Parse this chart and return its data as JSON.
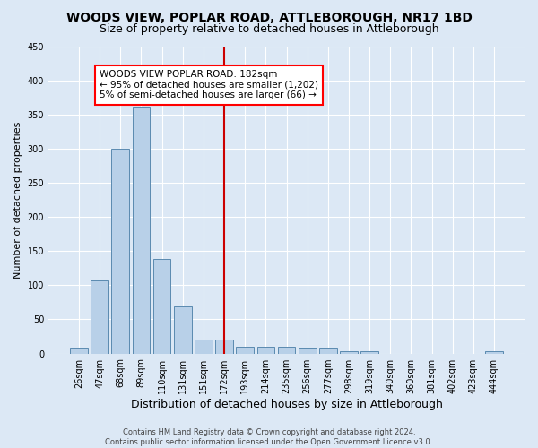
{
  "title": "WOODS VIEW, POPLAR ROAD, ATTLEBOROUGH, NR17 1BD",
  "subtitle": "Size of property relative to detached houses in Attleborough",
  "xlabel": "Distribution of detached houses by size in Attleborough",
  "ylabel": "Number of detached properties",
  "categories": [
    "26sqm",
    "47sqm",
    "68sqm",
    "89sqm",
    "110sqm",
    "131sqm",
    "151sqm",
    "172sqm",
    "193sqm",
    "214sqm",
    "235sqm",
    "256sqm",
    "277sqm",
    "298sqm",
    "319sqm",
    "340sqm",
    "360sqm",
    "381sqm",
    "402sqm",
    "423sqm",
    "444sqm"
  ],
  "values": [
    8,
    107,
    300,
    362,
    139,
    69,
    20,
    20,
    10,
    10,
    10,
    8,
    8,
    3,
    3,
    0,
    0,
    0,
    0,
    0,
    3
  ],
  "bar_color": "#b8d0e8",
  "bar_edge_color": "#5a8ab0",
  "vline_index": 7,
  "vline_color": "#cc0000",
  "annotation_box_text": "WOODS VIEW POPLAR ROAD: 182sqm\n← 95% of detached houses are smaller (1,202)\n5% of semi-detached houses are larger (66) →",
  "ylim": [
    0,
    450
  ],
  "yticks": [
    0,
    50,
    100,
    150,
    200,
    250,
    300,
    350,
    400,
    450
  ],
  "footer_text": "Contains HM Land Registry data © Crown copyright and database right 2024.\nContains public sector information licensed under the Open Government Licence v3.0.",
  "background_color": "#dce8f5",
  "plot_background_color": "#dce8f5",
  "grid_color": "#ffffff",
  "title_fontsize": 10,
  "subtitle_fontsize": 9,
  "xlabel_fontsize": 9,
  "ylabel_fontsize": 8,
  "tick_fontsize": 7,
  "annotation_fontsize": 7.5,
  "footer_fontsize": 6
}
